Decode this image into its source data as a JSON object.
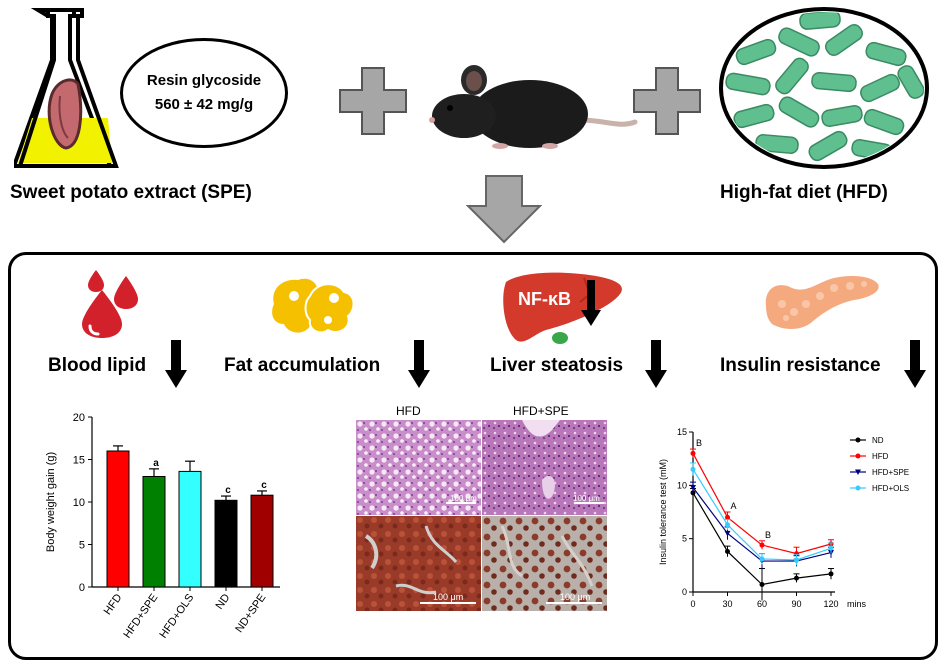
{
  "top": {
    "extract_label": "Sweet potato extract (SPE)",
    "diet_label": "High-fat diet (HFD)",
    "bubble_line1": "Resin glycoside",
    "bubble_line2": "560 ± 42 mg/g"
  },
  "effects": {
    "blood_lipid": "Blood lipid",
    "fat_accumulation": "Fat accumulation",
    "liver_steatosis": "Liver steatosis",
    "insulin_resistance": "Insulin resistance",
    "nfkb": "NF-κB"
  },
  "micrographs": {
    "col1": "HFD",
    "col2": "HFD+SPE",
    "scale": "100 μm"
  },
  "colors": {
    "hfd": "#ff0000",
    "hfd_spe": "#008000",
    "hfd_ols": "#33ffff",
    "nd": "#000000",
    "nd_spe": "#a00000",
    "ins_nd": "#000000",
    "ins_hfd": "#ff0000",
    "ins_spe": "#000080",
    "ins_ols": "#33ccff"
  },
  "chart_data": [
    {
      "type": "bar",
      "ylabel": "Body weight gain (g)",
      "categories": [
        "HFD",
        "HFD+SPE",
        "HFD+OLS",
        "ND",
        "ND+SPE"
      ],
      "values": [
        16.0,
        13.0,
        13.6,
        10.2,
        10.8
      ],
      "errors": [
        0.6,
        0.9,
        1.2,
        0.5,
        0.5
      ],
      "sig_labels": [
        "",
        "a",
        "",
        "c",
        "c"
      ],
      "yticks": [
        "0",
        "5",
        "10",
        "15",
        "20"
      ],
      "ylim": [
        0,
        20
      ]
    },
    {
      "type": "line",
      "ylabel": "Insulin tolerance test (mM)",
      "xunit": "mins",
      "x": [
        0,
        30,
        60,
        90,
        120
      ],
      "xticks": [
        "0",
        "30",
        "60",
        "90",
        "120"
      ],
      "yticks": [
        "0",
        "5",
        "10",
        "15"
      ],
      "ylim": [
        0,
        15
      ],
      "xlim": [
        0,
        120
      ],
      "sig_labels": [
        {
          "x": 0,
          "label": "B"
        },
        {
          "x": 30,
          "label": "A"
        },
        {
          "x": 60,
          "label": "B"
        }
      ],
      "series": [
        {
          "name": "ND",
          "values": [
            9.3,
            3.8,
            0.7,
            1.3,
            1.7
          ],
          "errors": [
            0.4,
            0.5,
            1.5,
            0.4,
            0.5
          ]
        },
        {
          "name": "HFD",
          "values": [
            13.0,
            7.0,
            4.4,
            3.6,
            4.5
          ],
          "errors": [
            0.4,
            0.5,
            0.4,
            0.6,
            0.4
          ]
        },
        {
          "name": "HFD+SPE",
          "values": [
            9.8,
            5.5,
            2.9,
            2.9,
            3.7
          ],
          "errors": [
            0.5,
            0.6,
            0.7,
            0.5,
            0.5
          ]
        },
        {
          "name": "HFD+OLS",
          "values": [
            11.5,
            6.3,
            3.1,
            3.0,
            4.1
          ],
          "errors": [
            0.6,
            0.5,
            0.5,
            0.5,
            0.5
          ]
        }
      ]
    }
  ]
}
